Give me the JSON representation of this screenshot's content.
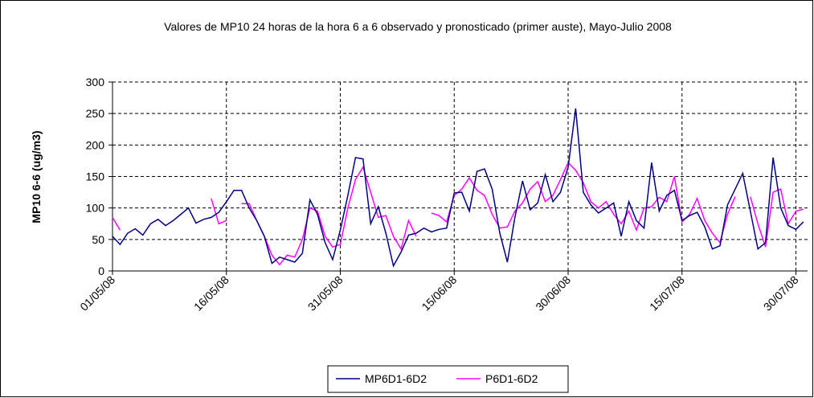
{
  "chart_data": {
    "type": "line",
    "title": "Valores de MP10 24 horas de la hora 6 a 6 observado y pronosticado (primer auste), Mayo-Julio 2008",
    "y_label": "MP10 6-6 (ug/m3)",
    "categories": [
      "01/05/08",
      null,
      null,
      null,
      null,
      null,
      null,
      null,
      null,
      null,
      null,
      null,
      null,
      null,
      null,
      "16/05/08",
      null,
      null,
      null,
      null,
      null,
      null,
      null,
      null,
      null,
      null,
      null,
      null,
      null,
      null,
      "31/05/08",
      null,
      null,
      null,
      null,
      null,
      null,
      null,
      null,
      null,
      null,
      null,
      null,
      null,
      null,
      "15/06/08",
      null,
      null,
      null,
      null,
      null,
      null,
      null,
      null,
      null,
      null,
      null,
      null,
      null,
      null,
      "30/06/08",
      null,
      null,
      null,
      null,
      null,
      null,
      null,
      null,
      null,
      null,
      null,
      null,
      null,
      null,
      "15/07/08",
      null,
      null,
      null,
      null,
      null,
      null,
      null,
      null,
      null,
      null,
      null,
      null,
      null,
      null,
      "30/07/08",
      null
    ],
    "series": [
      {
        "name": "MP6D1-6D2",
        "color": "#000080",
        "values": [
          55,
          42,
          60,
          67,
          57,
          75,
          82,
          72,
          80,
          90,
          100,
          76,
          82,
          85,
          93,
          110,
          128,
          128,
          100,
          80,
          55,
          12,
          22,
          18,
          14,
          28,
          113,
          90,
          45,
          18,
          65,
          120,
          180,
          178,
          75,
          102,
          60,
          8,
          30,
          57,
          60,
          68,
          62,
          66,
          68,
          124,
          125,
          95,
          158,
          162,
          130,
          60,
          14,
          85,
          143,
          97,
          108,
          153,
          110,
          125,
          165,
          258,
          125,
          105,
          92,
          100,
          108,
          55,
          110,
          80,
          68,
          172,
          95,
          120,
          128,
          80,
          88,
          93,
          70,
          35,
          40,
          105,
          130,
          155,
          95,
          35,
          45,
          180,
          100,
          72,
          66,
          78
        ]
      },
      {
        "name": "P6D1-6D2",
        "color": "#ff00ff",
        "values": [
          85,
          65,
          null,
          null,
          null,
          null,
          null,
          null,
          null,
          null,
          null,
          null,
          null,
          115,
          75,
          80,
          null,
          107,
          107,
          80,
          55,
          25,
          10,
          25,
          22,
          50,
          100,
          95,
          55,
          38,
          42,
          100,
          145,
          165,
          125,
          85,
          88,
          55,
          35,
          80,
          55,
          null,
          92,
          88,
          78,
          120,
          130,
          148,
          128,
          120,
          90,
          68,
          70,
          95,
          108,
          130,
          142,
          110,
          120,
          145,
          172,
          160,
          140,
          110,
          100,
          110,
          90,
          75,
          95,
          65,
          100,
          102,
          117,
          110,
          150,
          78,
          90,
          115,
          80,
          60,
          45,
          90,
          118,
          null,
          118,
          75,
          38,
          125,
          130,
          75,
          95,
          98
        ]
      }
    ],
    "ylim": [
      0,
      300
    ],
    "yticks": [
      0,
      50,
      100,
      150,
      200,
      250,
      300
    ],
    "grid": true,
    "legend": "bottom"
  }
}
